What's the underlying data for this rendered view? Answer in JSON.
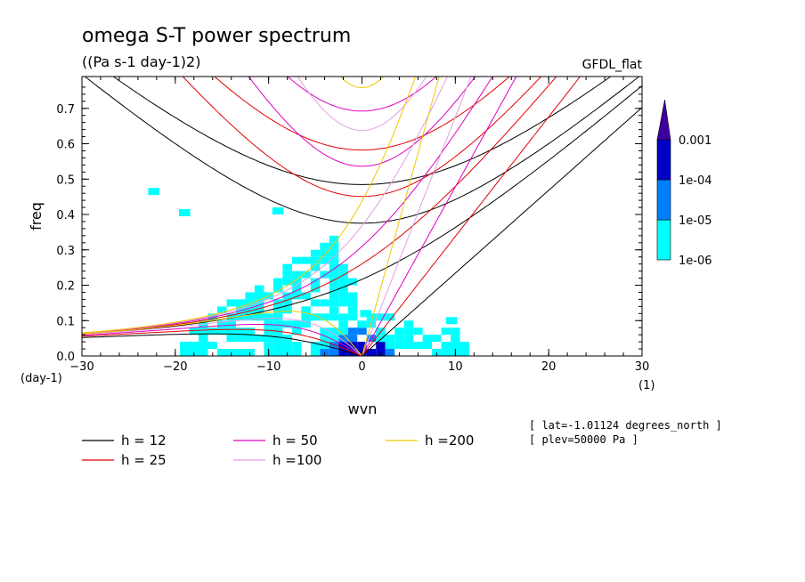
{
  "chart_data": {
    "type": "heatmap",
    "title": "omega S-T power spectrum",
    "subtitle": "((Pa s-1 day-1)2)",
    "dataset_label": "GFDL_flat",
    "xlabel": "wvn",
    "ylabel": "freq",
    "x_unit_label": "(1)",
    "y_unit_label": "(day-1)",
    "xlim": [
      -30,
      30
    ],
    "ylim": [
      0,
      0.79
    ],
    "x_ticks": [
      "−30",
      "−20",
      "−10",
      "0",
      "10",
      "20",
      "30"
    ],
    "x_tick_values": [
      -30,
      -20,
      -10,
      0,
      10,
      20,
      30
    ],
    "y_ticks": [
      "0.0",
      "0.1",
      "0.2",
      "0.3",
      "0.4",
      "0.5",
      "0.6",
      "0.7"
    ],
    "y_tick_values": [
      0,
      0.1,
      0.2,
      0.3,
      0.4,
      0.5,
      0.6,
      0.7
    ],
    "colorbar": {
      "labels": [
        "0.001",
        "1e-04",
        "1e-05",
        "1e-06"
      ],
      "levels": [
        1e-06,
        1e-05,
        0.0001,
        0.001
      ],
      "colors": [
        "#00ffff",
        "#0080ff",
        "#0000c8",
        "#4000a0"
      ]
    },
    "legend": [
      {
        "label": "h = 12",
        "color": "#000000",
        "h": 12
      },
      {
        "label": "h = 25",
        "color": "#e00000",
        "h": 25
      },
      {
        "label": "h = 50",
        "color": "#e000c0",
        "h": 50
      },
      {
        "label": "h =100",
        "color": "#e0a0e0",
        "h": 100
      },
      {
        "label": "h =200",
        "color": "#f0c800",
        "h": 200
      }
    ],
    "notes": [
      "[ lat=-1.01124 degrees_north ]",
      "[ plev=50000 Pa ]"
    ],
    "power_regions": [
      {
        "level": 1e-06,
        "wvn_range": [
          -19,
          11
        ],
        "freq_range": [
          0.0,
          0.35
        ]
      },
      {
        "level": 1e-05,
        "wvn_range": [
          -5,
          4
        ],
        "freq_range": [
          0.0,
          0.07
        ]
      },
      {
        "level": 0.0001,
        "wvn_range": [
          -2,
          1
        ],
        "freq_range": [
          0.0,
          0.03
        ]
      }
    ]
  }
}
